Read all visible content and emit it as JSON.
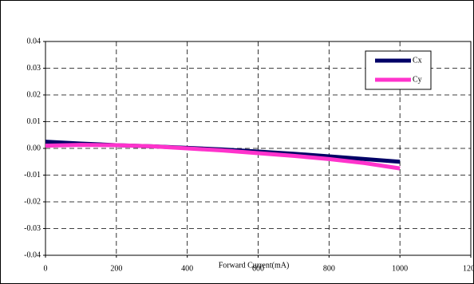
{
  "chart_data": {
    "type": "line",
    "x_label": "Forward Current(mA)",
    "x": [
      0,
      100,
      200,
      300,
      400,
      500,
      600,
      700,
      800,
      900,
      1000
    ],
    "series": [
      {
        "name": "Cx",
        "color": "#000066",
        "values": [
          0.0025,
          0.0018,
          0.0012,
          0.0008,
          0.0002,
          -0.0004,
          -0.0012,
          -0.002,
          -0.003,
          -0.004,
          -0.005
        ]
      },
      {
        "name": "Cy",
        "color": "#ff33cc",
        "values": [
          0.001,
          0.0013,
          0.0012,
          0.0008,
          0.0,
          -0.0008,
          -0.0018,
          -0.0028,
          -0.004,
          -0.0055,
          -0.0075
        ]
      }
    ],
    "xlim": [
      0,
      1200
    ],
    "xticks": [
      0,
      200,
      400,
      600,
      800,
      1000,
      1200
    ],
    "ylim": [
      -0.04,
      0.04
    ],
    "yticks": [
      -0.04,
      -0.03,
      -0.02,
      -0.01,
      {
        "value": 0,
        "label": "0.00"
      },
      0.01,
      0.02,
      0.03,
      0.04
    ],
    "grid": true,
    "legend": "upper-right"
  }
}
